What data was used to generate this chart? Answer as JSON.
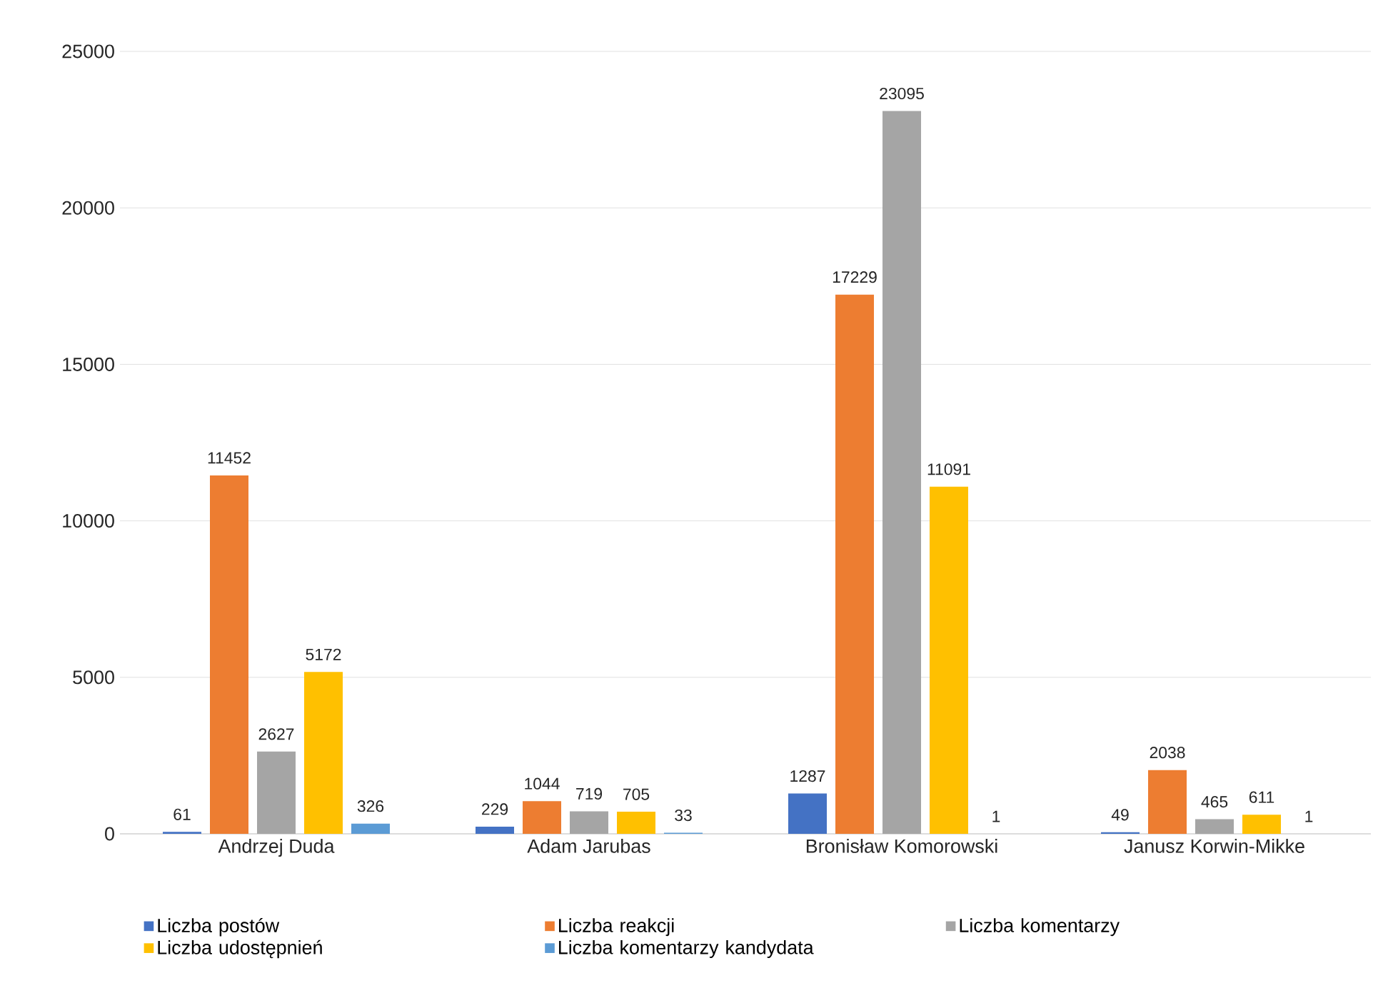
{
  "chart_data": {
    "type": "bar",
    "categories": [
      "Andrzej Duda",
      "Adam Jarubas",
      "Bronisław Komorowski",
      "Janusz Korwin-Mikke"
    ],
    "series": [
      {
        "name": "Liczba postów",
        "color": "#4472c4",
        "values": [
          61,
          229,
          1287,
          49
        ]
      },
      {
        "name": "Liczba reakcji",
        "color": "#ed7d31",
        "values": [
          11452,
          1044,
          17229,
          2038
        ]
      },
      {
        "name": "Liczba komentarzy",
        "color": "#a5a5a5",
        "values": [
          2627,
          719,
          23095,
          465
        ]
      },
      {
        "name": "Liczba udostępnień",
        "color": "#ffc000",
        "values": [
          5172,
          705,
          11091,
          611
        ]
      },
      {
        "name": "Liczba komentarzy kandydata",
        "color": "#5b9bd5",
        "values": [
          326,
          33,
          1,
          1
        ]
      }
    ],
    "ylim": [
      0,
      25000
    ],
    "yticks": [
      0,
      5000,
      10000,
      15000,
      20000,
      25000
    ],
    "grid": "y",
    "legend": "bottom",
    "data_labels": true
  }
}
